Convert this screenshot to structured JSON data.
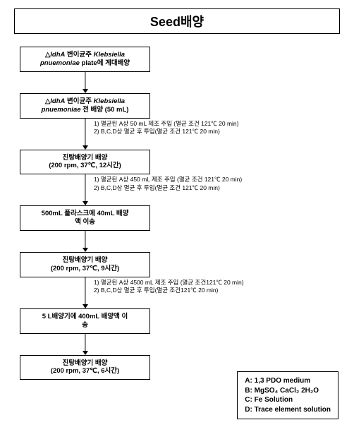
{
  "title": "Seed배양",
  "nodes": [
    {
      "html": "△<em>ldhA</em> 변이균주 <em>Klebsiella<br>pnuemoniae</em> plate에 계대배양"
    },
    {
      "html": "△<em>ldhA</em> 변이균주 <em>Klebsiella<br>pnuemoniae</em> 전 배양 (50 mL)"
    },
    {
      "html": "진탕배양기 배양<br>(200 rpm, 37℃, 12시간)"
    },
    {
      "html": "500mL 플라스크에 40mL 배양<br>액 이송"
    },
    {
      "html": "진탕배양기 배양<br>(200 rpm, 37℃, 9시간)"
    },
    {
      "html": "5 L배양기에 400mL 배양액 이<br>송"
    },
    {
      "html": "진탕배양기 배양<br>(200 rpm, 37℃, 6시간)"
    }
  ],
  "notes": [
    {
      "after_index": 1,
      "lines": [
        "1) 멸균된 A상 50 mL 제조 주입 (멸균 조건 121℃ 20 min)",
        "2) B,C,D상 멸균 후 투입(멸균 조건 121℃ 20 min)"
      ]
    },
    {
      "after_index": 2,
      "lines": [
        "1) 멸균된 A상 450 mL 제조 주입 (멸균 조건 121℃ 20 min)",
        "2) B,C,D상 멸균 후 투입(멸균 조건 121℃ 20 min)"
      ]
    },
    {
      "after_index": 4,
      "lines": [
        "1) 멸균된 A상 4500 mL 제조 주입 (멸균 조건121℃ 20 min)",
        "2) B,C,D상 멸균 후 투입(멸균 조건121℃ 20 min)"
      ]
    }
  ],
  "legend": [
    "A: 1,3 PDO medium",
    "B: MgSO₄ CaCl₂ 2H₂O",
    "C: Fe Solution",
    "D: Trace element solution"
  ],
  "colors": {
    "border": "#000000",
    "bg": "#ffffff",
    "text": "#000000"
  }
}
